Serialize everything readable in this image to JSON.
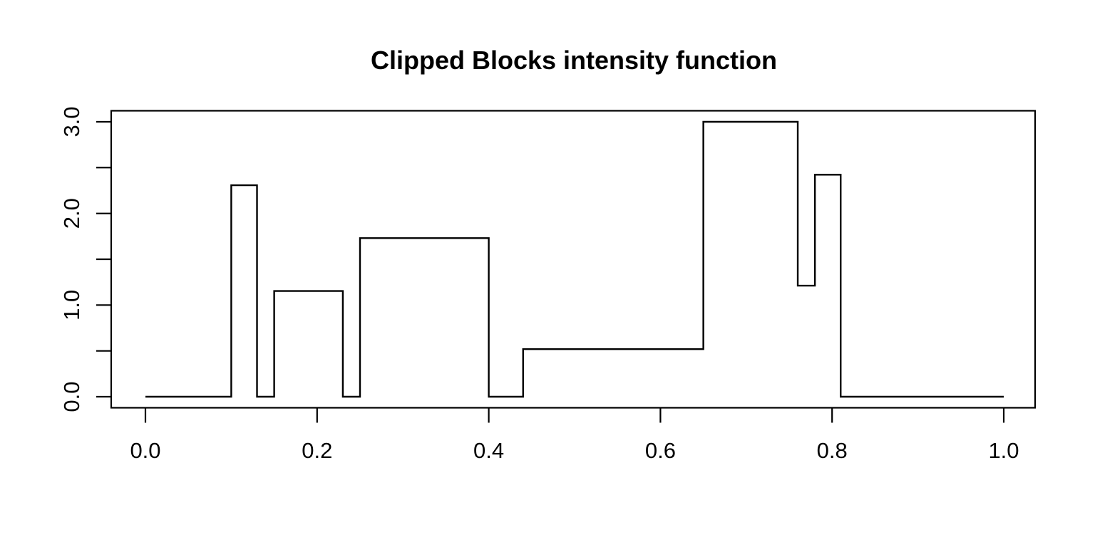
{
  "chart_data": {
    "type": "line",
    "subtype": "step",
    "title": "Clipped Blocks intensity function",
    "xlabel": "",
    "ylabel": "",
    "xlim": [
      0,
      1
    ],
    "ylim": [
      0,
      3
    ],
    "grid": false,
    "legend": "none",
    "line_color": "#000000",
    "axis_color": "#000000",
    "background_color": "#ffffff",
    "x_ticks": [
      {
        "value": 0.0,
        "label": "0.0"
      },
      {
        "value": 0.2,
        "label": "0.2"
      },
      {
        "value": 0.4,
        "label": "0.4"
      },
      {
        "value": 0.6,
        "label": "0.6"
      },
      {
        "value": 0.8,
        "label": "0.8"
      },
      {
        "value": 1.0,
        "label": "1.0"
      }
    ],
    "y_ticks": [
      {
        "value": 0.0,
        "label": "0.0"
      },
      {
        "value": 0.5,
        "label": ""
      },
      {
        "value": 1.0,
        "label": "1.0"
      },
      {
        "value": 1.5,
        "label": ""
      },
      {
        "value": 2.0,
        "label": "2.0"
      },
      {
        "value": 2.5,
        "label": ""
      },
      {
        "value": 3.0,
        "label": "3.0"
      }
    ],
    "segments": [
      {
        "x_from": 0.0,
        "x_to": 0.1,
        "value": 0
      },
      {
        "x_from": 0.1,
        "x_to": 0.13,
        "value": 2.308
      },
      {
        "x_from": 0.13,
        "x_to": 0.15,
        "value": 0
      },
      {
        "x_from": 0.15,
        "x_to": 0.23,
        "value": 1.154
      },
      {
        "x_from": 0.23,
        "x_to": 0.25,
        "value": 0
      },
      {
        "x_from": 0.25,
        "x_to": 0.4,
        "value": 1.731
      },
      {
        "x_from": 0.4,
        "x_to": 0.44,
        "value": 0
      },
      {
        "x_from": 0.44,
        "x_to": 0.65,
        "value": 0.519
      },
      {
        "x_from": 0.65,
        "x_to": 0.76,
        "value": 3.0
      },
      {
        "x_from": 0.76,
        "x_to": 0.78,
        "value": 1.212
      },
      {
        "x_from": 0.78,
        "x_to": 0.81,
        "value": 2.423
      },
      {
        "x_from": 0.81,
        "x_to": 1.0,
        "value": 0
      }
    ]
  }
}
